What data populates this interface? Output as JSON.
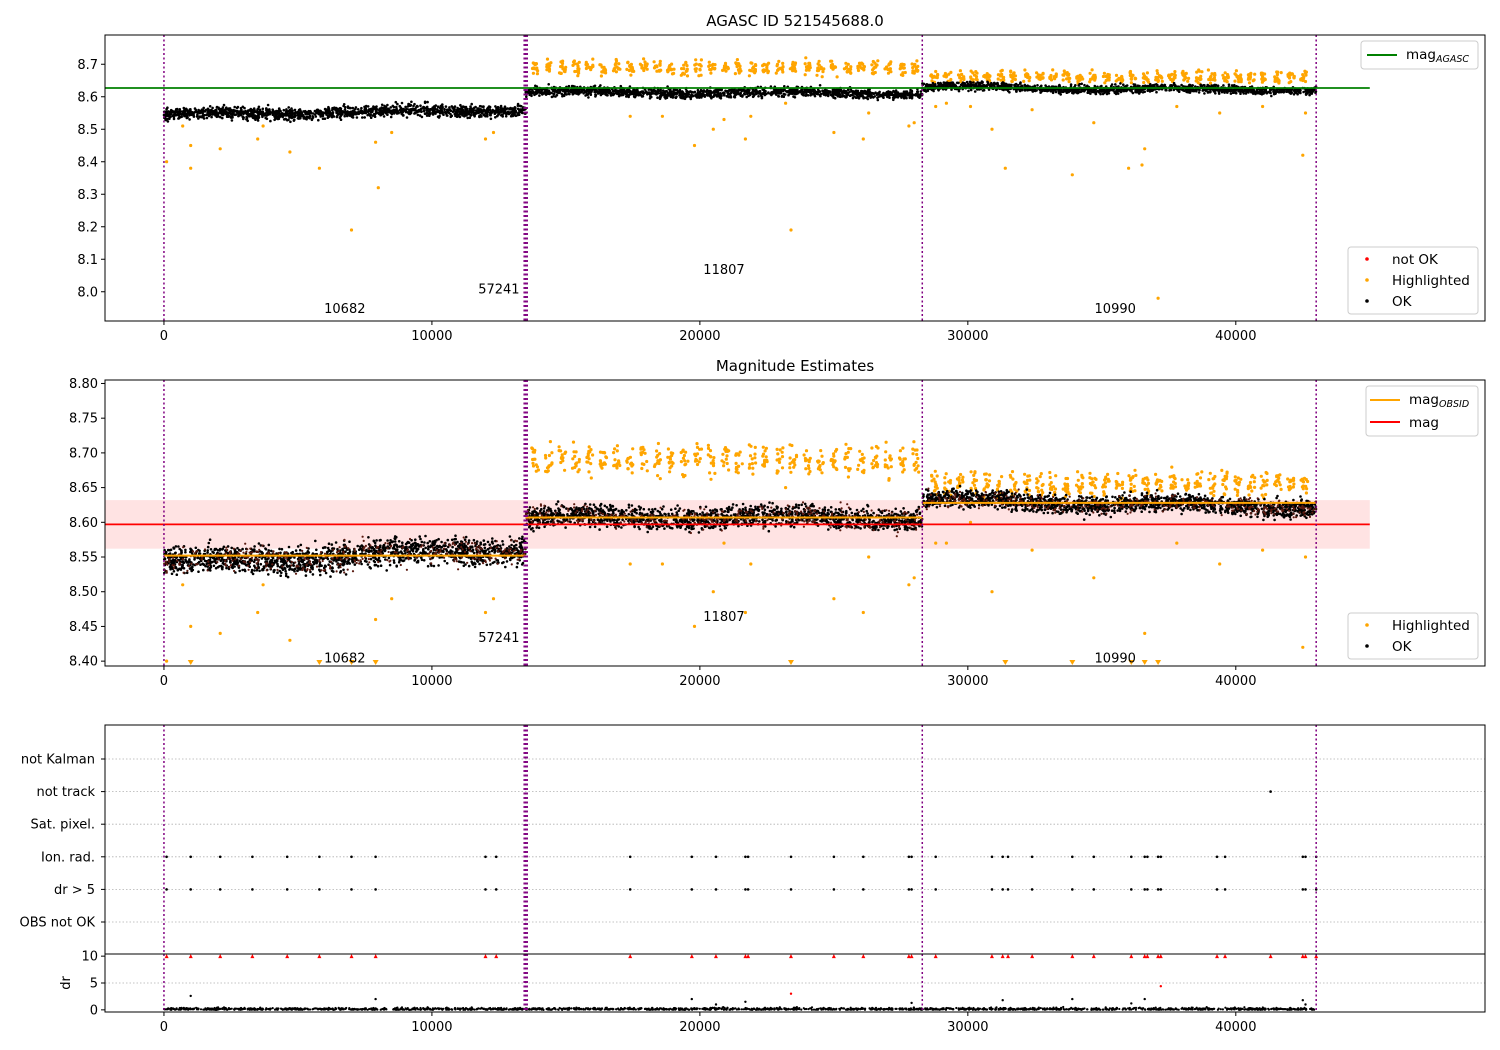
{
  "chart_data": [
    {
      "type": "scatter",
      "title": "AGASC ID 521545688.0",
      "xlim": [
        -2200,
        49300
      ],
      "ylim": [
        7.91,
        8.79
      ],
      "x_ticks": [
        0,
        10000,
        20000,
        30000,
        40000
      ],
      "y_ticks": [
        8.0,
        8.1,
        8.2,
        8.3,
        8.4,
        8.5,
        8.6,
        8.7
      ],
      "reference_lines": [
        {
          "name": "mag_AGASC",
          "value": 8.627,
          "x_range": [
            -2200,
            45000
          ],
          "color": "#008000"
        }
      ],
      "observation_boundaries": [
        0,
        13500,
        28300,
        43000
      ],
      "observation_labels": [
        {
          "text": "10682",
          "x": 6750,
          "y": 7.95
        },
        {
          "text": "57241",
          "x": 12500,
          "y": 8.01
        },
        {
          "text": "11807",
          "x": 20900,
          "y": 8.07
        },
        {
          "text": "10990",
          "x": 35500,
          "y": 7.95
        }
      ],
      "series": [
        {
          "name": "OK",
          "color": "#000000",
          "segments": [
            {
              "x": [
                0,
                13500
              ],
              "center": [
                8.545,
                8.56
              ],
              "spread": 0.02
            },
            {
              "x": [
                13500,
                28300
              ],
              "center": [
                8.615,
                8.61
              ],
              "spread": 0.016
            },
            {
              "x": [
                28300,
                43000
              ],
              "center": [
                8.63,
                8.62
              ],
              "spread": 0.014
            }
          ]
        },
        {
          "name": "Highlighted",
          "color": "#ffa500",
          "bands": [
            {
              "x": [
                13600,
                28300
              ],
              "center": 8.69,
              "spread": 0.025
            },
            {
              "x": [
                28500,
                42800
              ],
              "center": 8.66,
              "spread": 0.02
            }
          ],
          "outliers": [
            [
              100,
              8.4
            ],
            [
              700,
              8.51
            ],
            [
              1000,
              8.45
            ],
            [
              1000,
              8.38
            ],
            [
              2100,
              8.44
            ],
            [
              3500,
              8.47
            ],
            [
              3700,
              8.51
            ],
            [
              4700,
              8.43
            ],
            [
              5800,
              8.38
            ],
            [
              7000,
              8.19
            ],
            [
              7900,
              8.46
            ],
            [
              8000,
              8.32
            ],
            [
              8500,
              8.49
            ],
            [
              12000,
              8.47
            ],
            [
              12300,
              8.49
            ],
            [
              17400,
              8.54
            ],
            [
              18600,
              8.54
            ],
            [
              19800,
              8.45
            ],
            [
              20500,
              8.5
            ],
            [
              20900,
              8.53
            ],
            [
              21700,
              8.47
            ],
            [
              21900,
              8.54
            ],
            [
              23200,
              8.58
            ],
            [
              23400,
              8.19
            ],
            [
              25000,
              8.49
            ],
            [
              26100,
              8.47
            ],
            [
              26300,
              8.55
            ],
            [
              27800,
              8.51
            ],
            [
              28000,
              8.52
            ],
            [
              28800,
              8.57
            ],
            [
              29200,
              8.58
            ],
            [
              30100,
              8.57
            ],
            [
              30900,
              8.5
            ],
            [
              31400,
              8.38
            ],
            [
              32400,
              8.56
            ],
            [
              33900,
              8.36
            ],
            [
              34700,
              8.52
            ],
            [
              36000,
              8.38
            ],
            [
              36500,
              8.39
            ],
            [
              36600,
              8.44
            ],
            [
              37100,
              7.98
            ],
            [
              37800,
              8.57
            ],
            [
              39400,
              8.55
            ],
            [
              41000,
              8.57
            ],
            [
              42500,
              8.42
            ],
            [
              42600,
              8.55
            ]
          ]
        },
        {
          "name": "not OK",
          "color": "#ff0000",
          "segments": [],
          "outliers": []
        }
      ],
      "legend": [
        {
          "position": "top-right",
          "entries": [
            {
              "label": "mag",
              "sub": "AGASC",
              "kind": "line",
              "color": "#008000"
            }
          ]
        },
        {
          "position": "bottom-right",
          "entries": [
            {
              "label": "not OK",
              "kind": "marker",
              "color": "#ff0000"
            },
            {
              "label": "Highlighted",
              "kind": "marker",
              "color": "#ffa500"
            },
            {
              "label": "OK",
              "kind": "marker",
              "color": "#000000"
            }
          ]
        }
      ]
    },
    {
      "type": "scatter",
      "title": "Magnitude Estimates",
      "xlim": [
        -2200,
        49300
      ],
      "ylim": [
        8.393,
        8.805
      ],
      "x_ticks": [
        0,
        10000,
        20000,
        30000,
        40000
      ],
      "y_ticks": [
        8.4,
        8.45,
        8.5,
        8.55,
        8.6,
        8.65,
        8.7,
        8.75,
        8.8
      ],
      "y_tick_labels": [
        "8.40",
        "8.45",
        "8.50",
        "8.55",
        "8.60",
        "8.65",
        "8.70",
        "8.75",
        "8.80"
      ],
      "reference_lines": [
        {
          "name": "mag",
          "value": 8.597,
          "x_range": [
            -2200,
            45000
          ],
          "color": "#ff0000"
        }
      ],
      "reference_band": {
        "y": [
          8.562,
          8.632
        ],
        "x_range": [
          -2200,
          45000
        ],
        "color": "#ffc0c0"
      },
      "obsid_means": [
        {
          "x": [
            0,
            13500
          ],
          "value": 8.552
        },
        {
          "x": [
            13500,
            28300
          ],
          "value": 8.607
        },
        {
          "x": [
            28300,
            43000
          ],
          "value": 8.628
        }
      ],
      "observation_boundaries": [
        0,
        13500,
        28300,
        43000
      ],
      "observation_labels": [
        {
          "text": "10682",
          "x": 6750,
          "y": 8.405
        },
        {
          "text": "57241",
          "x": 12500,
          "y": 8.435
        },
        {
          "text": "11807",
          "x": 20900,
          "y": 8.465
        },
        {
          "text": "10990",
          "x": 35500,
          "y": 8.405
        }
      ],
      "series": [
        {
          "name": "OK",
          "color": "#000000",
          "segments": [
            {
              "x": [
                0,
                13500
              ],
              "center": [
                8.542,
                8.562
              ],
              "spread": 0.022
            },
            {
              "x": [
                13500,
                28300
              ],
              "center": [
                8.607,
                8.607
              ],
              "spread": 0.017
            },
            {
              "x": [
                28300,
                43000
              ],
              "center": [
                8.632,
                8.622
              ],
              "spread": 0.014
            }
          ]
        },
        {
          "name": "Highlighted",
          "color": "#ffa500",
          "bands": [
            {
              "x": [
                13600,
                28300
              ],
              "center": 8.69,
              "spread": 0.025
            },
            {
              "x": [
                28500,
                42800
              ],
              "center": 8.655,
              "spread": 0.02
            }
          ],
          "outliers": [
            [
              100,
              8.4
            ],
            [
              700,
              8.51
            ],
            [
              1000,
              8.45
            ],
            [
              2100,
              8.44
            ],
            [
              3500,
              8.47
            ],
            [
              3700,
              8.51
            ],
            [
              4700,
              8.43
            ],
            [
              7900,
              8.46
            ],
            [
              8500,
              8.49
            ],
            [
              12000,
              8.47
            ],
            [
              12300,
              8.49
            ],
            [
              17400,
              8.54
            ],
            [
              18600,
              8.54
            ],
            [
              19800,
              8.45
            ],
            [
              20500,
              8.5
            ],
            [
              20900,
              8.57
            ],
            [
              21700,
              8.47
            ],
            [
              21900,
              8.54
            ],
            [
              23200,
              8.65
            ],
            [
              25000,
              8.49
            ],
            [
              26100,
              8.47
            ],
            [
              26300,
              8.55
            ],
            [
              27800,
              8.51
            ],
            [
              28000,
              8.52
            ],
            [
              28800,
              8.57
            ],
            [
              29200,
              8.57
            ],
            [
              30100,
              8.6
            ],
            [
              30900,
              8.5
            ],
            [
              32400,
              8.56
            ],
            [
              34700,
              8.52
            ],
            [
              36600,
              8.44
            ],
            [
              37800,
              8.57
            ],
            [
              39400,
              8.54
            ],
            [
              41000,
              8.56
            ],
            [
              42500,
              8.42
            ],
            [
              42600,
              8.55
            ]
          ],
          "below_range_x": [
            1000,
            5800,
            7000,
            7900,
            23400,
            31400,
            33900,
            36100,
            36600,
            37100
          ]
        }
      ],
      "legend": [
        {
          "position": "top-right",
          "entries": [
            {
              "label": "mag",
              "sub": "OBSID",
              "kind": "line",
              "color": "#ffa500"
            },
            {
              "label": "mag",
              "kind": "line",
              "color": "#ff0000"
            }
          ]
        },
        {
          "position": "bottom-right",
          "entries": [
            {
              "label": "Highlighted",
              "kind": "marker",
              "color": "#ffa500"
            },
            {
              "label": "OK",
              "kind": "marker",
              "color": "#000000"
            }
          ]
        }
      ]
    },
    {
      "type": "scatter",
      "title": "",
      "xlim": [
        -2200,
        49300
      ],
      "categories": [
        "not Kalman",
        "not track",
        "Sat. pixel.",
        "Ion. rad.",
        "dr > 5",
        "OBS not OK"
      ],
      "observation_boundaries": [
        0,
        13500,
        28300,
        43000
      ],
      "flags": {
        "not track": [
          41300
        ],
        "Ion. rad.": [
          100,
          1000,
          2100,
          3300,
          4600,
          5800,
          7000,
          7900,
          12000,
          12400,
          17400,
          19700,
          20600,
          21700,
          21800,
          23400,
          25000,
          26100,
          27800,
          27900,
          28800,
          30900,
          31300,
          31500,
          32400,
          33900,
          34700,
          36100,
          36600,
          36700,
          37100,
          37200,
          39300,
          39600,
          42500,
          42600,
          43000
        ],
        "dr > 5": [
          100,
          1000,
          2100,
          3300,
          4600,
          5800,
          7000,
          7900,
          12000,
          12400,
          17400,
          19700,
          20600,
          21700,
          21800,
          23400,
          25000,
          26100,
          27800,
          27900,
          28800,
          30900,
          31300,
          31500,
          32400,
          33900,
          34700,
          36100,
          36600,
          36700,
          37100,
          37200,
          39300,
          39600,
          42500,
          42600,
          43000
        ]
      }
    },
    {
      "type": "scatter",
      "title": "",
      "ylabel": "dr",
      "xlim": [
        -2200,
        49300
      ],
      "ylim": [
        -0.4,
        10.4
      ],
      "x_ticks": [
        0,
        10000,
        20000,
        30000,
        40000
      ],
      "y_ticks": [
        0,
        5,
        10
      ],
      "observation_boundaries": [
        0,
        13500,
        28300,
        43000
      ],
      "series": [
        {
          "name": "OK",
          "color": "#000000",
          "baseline": 0.15,
          "spread": 0.25,
          "outliers": [
            [
              1000,
              2.6
            ],
            [
              7900,
              2.0
            ],
            [
              19700,
              2.0
            ],
            [
              20600,
              1.0
            ],
            [
              21700,
              1.5
            ],
            [
              27900,
              1.3
            ],
            [
              31300,
              1.8
            ],
            [
              33900,
              2.0
            ],
            [
              36100,
              1.2
            ],
            [
              36600,
              2.0
            ],
            [
              42500,
              1.8
            ],
            [
              42600,
              1.0
            ]
          ]
        },
        {
          "name": "not OK",
          "color": "#ff0000",
          "clipped_value": 10,
          "clipped_x": [
            100,
            1000,
            2100,
            3300,
            4600,
            5800,
            7000,
            7900,
            12000,
            12400,
            17400,
            19700,
            20600,
            21700,
            21800,
            23400,
            25000,
            26100,
            27800,
            27900,
            28800,
            30900,
            31300,
            31500,
            32400,
            33900,
            34700,
            36100,
            36600,
            36700,
            37100,
            37200,
            39300,
            39600,
            41300,
            42500,
            42600,
            43000
          ],
          "outliers": [
            [
              23400,
              3.0
            ],
            [
              37200,
              4.4
            ]
          ]
        }
      ]
    }
  ]
}
